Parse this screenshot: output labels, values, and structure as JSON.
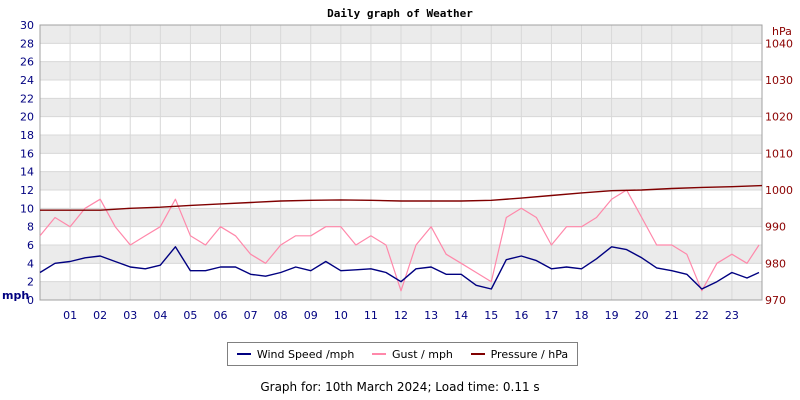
{
  "chart_data": {
    "type": "line",
    "title": "Daily graph of Weather",
    "left_axis": {
      "unit": "mph",
      "min": 0,
      "max": 30,
      "ticks": [
        0,
        2,
        4,
        6,
        8,
        10,
        12,
        14,
        16,
        18,
        20,
        22,
        24,
        26,
        28,
        30
      ]
    },
    "right_axis": {
      "unit": "hPa",
      "min": 970,
      "max": 1045,
      "ticks": [
        970,
        980,
        990,
        1000,
        1010,
        1020,
        1030,
        1040
      ]
    },
    "x_axis": {
      "min": 0,
      "max": 24,
      "ticks": [
        "01",
        "02",
        "03",
        "04",
        "05",
        "06",
        "07",
        "08",
        "09",
        "10",
        "11",
        "12",
        "13",
        "14",
        "15",
        "16",
        "17",
        "18",
        "19",
        "20",
        "21",
        "22",
        "23"
      ]
    },
    "grid": true,
    "legend_position": "bottom",
    "series": [
      {
        "name": "Wind Speed /mph",
        "axis": "left",
        "color": "#000080",
        "x": [
          0,
          0.5,
          1,
          1.5,
          2,
          2.5,
          3,
          3.5,
          4,
          4.5,
          5,
          5.5,
          6,
          6.5,
          7,
          7.5,
          8,
          8.5,
          9,
          9.5,
          10,
          10.5,
          11,
          11.5,
          12,
          12.5,
          13,
          13.5,
          14,
          14.5,
          15,
          15.5,
          16,
          16.5,
          17,
          17.5,
          18,
          18.5,
          19,
          19.5,
          20,
          20.5,
          21,
          21.5,
          22,
          22.5,
          23,
          23.5,
          23.9
        ],
        "values": [
          3.0,
          4.0,
          4.2,
          4.6,
          4.8,
          4.2,
          3.6,
          3.4,
          3.8,
          5.8,
          3.2,
          3.2,
          3.6,
          3.6,
          2.8,
          2.6,
          3.0,
          3.6,
          3.2,
          4.2,
          3.2,
          3.3,
          3.4,
          3.0,
          2.0,
          3.4,
          3.6,
          2.8,
          2.8,
          1.6,
          1.2,
          4.4,
          4.8,
          4.3,
          3.4,
          3.6,
          3.4,
          4.5,
          5.8,
          5.5,
          4.6,
          3.5,
          3.2,
          2.8,
          1.2,
          2.0,
          3.0,
          2.4,
          3.0
        ]
      },
      {
        "name": "Gust / mph",
        "axis": "left",
        "color": "#ff88aa",
        "x": [
          0,
          0.5,
          1,
          1.5,
          2,
          2.5,
          3,
          3.5,
          4,
          4.5,
          5,
          5.5,
          6,
          6.5,
          7,
          7.5,
          8,
          8.5,
          9,
          9.5,
          10,
          10.5,
          11,
          11.5,
          12,
          12.5,
          13,
          13.5,
          14,
          14.5,
          15,
          15.5,
          16,
          16.5,
          17,
          17.5,
          18,
          18.5,
          19,
          19.5,
          20,
          20.5,
          21,
          21.5,
          22,
          22.5,
          23,
          23.5,
          23.9
        ],
        "values": [
          7,
          9,
          8,
          10,
          11,
          8,
          6,
          7,
          8,
          11,
          7,
          6,
          8,
          7,
          5,
          4,
          6,
          7,
          7,
          8,
          8,
          6,
          7,
          6,
          1,
          6,
          8,
          5,
          4,
          3,
          2,
          9,
          10,
          9,
          6,
          8,
          8,
          9,
          11,
          12,
          9,
          6,
          6,
          5,
          1,
          4,
          5,
          4,
          6
        ]
      },
      {
        "name": "Pressure / hPa",
        "axis": "right",
        "color": "#800000",
        "x": [
          0,
          1,
          2,
          3,
          4,
          5,
          6,
          7,
          8,
          9,
          10,
          11,
          12,
          13,
          14,
          15,
          16,
          17,
          18,
          19,
          20,
          21,
          22,
          23,
          24
        ],
        "values": [
          994.5,
          994.5,
          994.5,
          995,
          995.3,
          995.8,
          996.2,
          996.6,
          997,
          997.2,
          997.3,
          997.2,
          997,
          997,
          997,
          997.2,
          997.8,
          998.5,
          999.2,
          999.8,
          1000,
          1000.4,
          1000.7,
          1000.9,
          1001.2
        ]
      }
    ]
  },
  "footer_text": "Graph for: 10th March 2024; Load time: 0.11 s"
}
